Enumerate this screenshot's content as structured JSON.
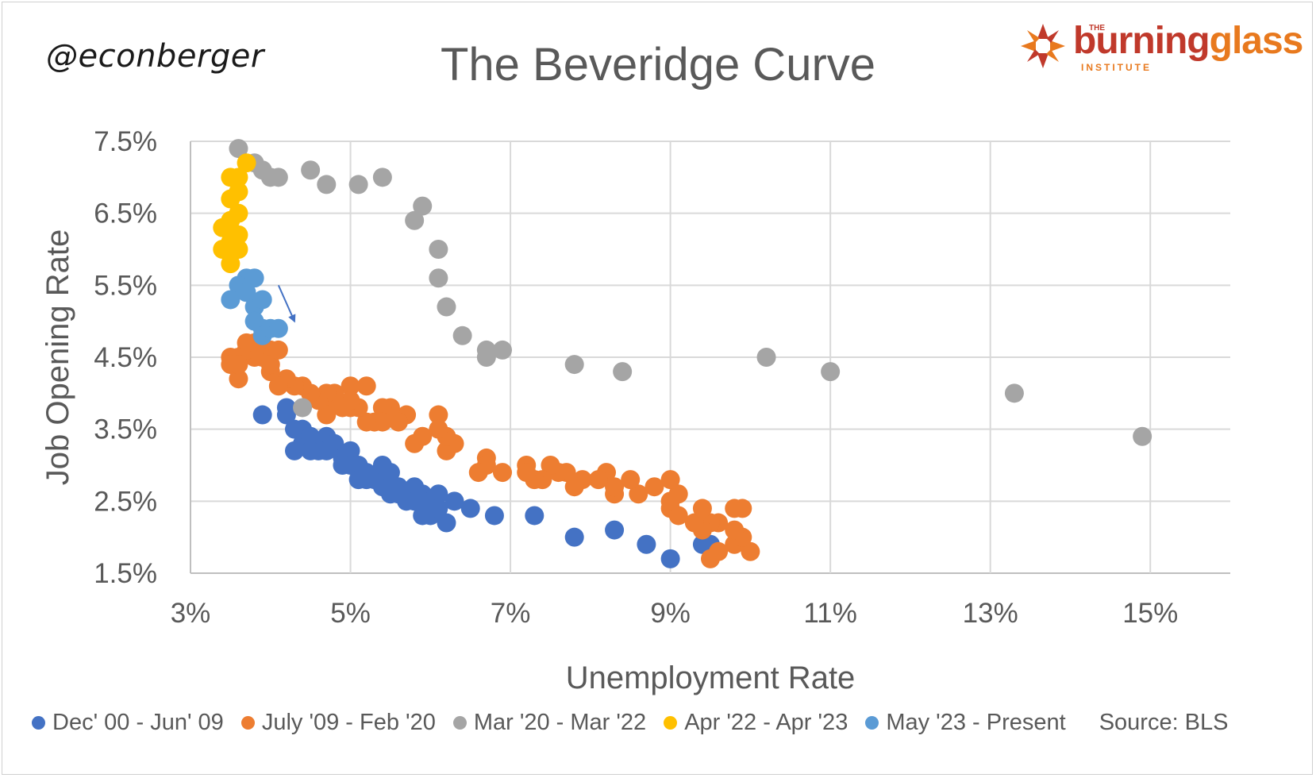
{
  "handle": "@econberger",
  "logo": {
    "the": "THE",
    "burning": "burning",
    "glass": "glass",
    "institute": "INSTITUTE",
    "primary_color": "#c0392b",
    "accent_color": "#e8791e"
  },
  "source": "Source: BLS",
  "chart_data": {
    "type": "scatter",
    "title": "The Beveridge Curve",
    "xlabel": "Unemployment Rate",
    "ylabel": "Job Opening Rate",
    "xlim": [
      3,
      16
    ],
    "ylim": [
      1.5,
      7.5
    ],
    "x_ticks": [
      "3%",
      "5%",
      "7%",
      "9%",
      "11%",
      "13%",
      "15%"
    ],
    "y_ticks": [
      "1.5%",
      "2.5%",
      "3.5%",
      "4.5%",
      "5.5%",
      "6.5%",
      "7.5%"
    ],
    "grid": true,
    "legend_position": "bottom",
    "annotations": [
      {
        "type": "arrow",
        "from": [
          4.1,
          5.5
        ],
        "to": [
          4.3,
          5.0
        ]
      }
    ],
    "series": [
      {
        "name": "Dec' 00 - Jun' 09",
        "color": "#4472c4",
        "points": [
          [
            3.9,
            3.7
          ],
          [
            4.2,
            3.8
          ],
          [
            4.2,
            3.7
          ],
          [
            4.3,
            3.5
          ],
          [
            4.4,
            3.5
          ],
          [
            4.3,
            3.2
          ],
          [
            4.4,
            3.3
          ],
          [
            4.5,
            3.4
          ],
          [
            4.6,
            3.3
          ],
          [
            4.7,
            3.4
          ],
          [
            4.7,
            3.2
          ],
          [
            4.8,
            3.3
          ],
          [
            4.6,
            3.2
          ],
          [
            4.5,
            3.2
          ],
          [
            4.9,
            3.1
          ],
          [
            5.0,
            3.2
          ],
          [
            5.0,
            3.0
          ],
          [
            5.1,
            3.0
          ],
          [
            5.1,
            2.8
          ],
          [
            5.2,
            2.9
          ],
          [
            5.3,
            2.8
          ],
          [
            5.4,
            3.0
          ],
          [
            5.4,
            2.7
          ],
          [
            5.5,
            2.9
          ],
          [
            5.5,
            2.6
          ],
          [
            5.6,
            2.7
          ],
          [
            5.7,
            2.6
          ],
          [
            5.7,
            2.5
          ],
          [
            5.8,
            2.7
          ],
          [
            5.8,
            2.5
          ],
          [
            5.9,
            2.3
          ],
          [
            5.9,
            2.6
          ],
          [
            6.0,
            2.5
          ],
          [
            6.0,
            2.3
          ],
          [
            6.1,
            2.6
          ],
          [
            6.1,
            2.4
          ],
          [
            6.2,
            2.2
          ],
          [
            6.3,
            2.5
          ],
          [
            6.5,
            2.4
          ],
          [
            6.8,
            2.3
          ],
          [
            7.3,
            2.3
          ],
          [
            7.8,
            2.0
          ],
          [
            8.3,
            2.1
          ],
          [
            8.7,
            1.9
          ],
          [
            9.0,
            1.7
          ],
          [
            9.4,
            1.9
          ],
          [
            9.5,
            1.9
          ],
          [
            4.9,
            3.0
          ],
          [
            5.2,
            2.8
          ],
          [
            5.6,
            2.6
          ]
        ]
      },
      {
        "name": "July '09 - Feb '20",
        "color": "#ed7d31",
        "points": [
          [
            9.5,
            1.7
          ],
          [
            9.6,
            1.8
          ],
          [
            10.0,
            1.8
          ],
          [
            9.8,
            1.9
          ],
          [
            9.9,
            2.0
          ],
          [
            9.8,
            2.1
          ],
          [
            9.6,
            2.2
          ],
          [
            9.5,
            2.2
          ],
          [
            9.4,
            2.1
          ],
          [
            9.3,
            2.2
          ],
          [
            9.4,
            2.4
          ],
          [
            9.8,
            2.4
          ],
          [
            9.9,
            2.4
          ],
          [
            9.0,
            2.4
          ],
          [
            9.1,
            2.3
          ],
          [
            9.0,
            2.5
          ],
          [
            9.1,
            2.6
          ],
          [
            9.0,
            2.8
          ],
          [
            8.8,
            2.7
          ],
          [
            8.6,
            2.6
          ],
          [
            8.5,
            2.8
          ],
          [
            8.3,
            2.6
          ],
          [
            8.2,
            2.9
          ],
          [
            8.3,
            2.7
          ],
          [
            8.1,
            2.8
          ],
          [
            7.9,
            2.8
          ],
          [
            7.8,
            2.7
          ],
          [
            7.7,
            2.9
          ],
          [
            7.6,
            2.9
          ],
          [
            7.5,
            3.0
          ],
          [
            7.4,
            2.8
          ],
          [
            7.3,
            2.8
          ],
          [
            7.2,
            3.0
          ],
          [
            7.2,
            2.9
          ],
          [
            6.9,
            2.9
          ],
          [
            6.7,
            3.1
          ],
          [
            6.7,
            3.0
          ],
          [
            6.6,
            2.9
          ],
          [
            6.3,
            3.3
          ],
          [
            6.2,
            3.2
          ],
          [
            6.2,
            3.4
          ],
          [
            6.1,
            3.7
          ],
          [
            6.1,
            3.5
          ],
          [
            5.9,
            3.4
          ],
          [
            5.8,
            3.3
          ],
          [
            5.7,
            3.7
          ],
          [
            5.6,
            3.6
          ],
          [
            5.5,
            3.8
          ],
          [
            5.4,
            3.8
          ],
          [
            5.4,
            3.6
          ],
          [
            5.3,
            3.6
          ],
          [
            5.2,
            3.6
          ],
          [
            5.2,
            4.1
          ],
          [
            5.1,
            3.8
          ],
          [
            5.0,
            3.8
          ],
          [
            5.0,
            4.1
          ],
          [
            5.0,
            3.9
          ],
          [
            4.9,
            3.8
          ],
          [
            4.8,
            3.9
          ],
          [
            4.8,
            4.0
          ],
          [
            4.7,
            4.0
          ],
          [
            4.7,
            3.7
          ],
          [
            4.6,
            3.9
          ],
          [
            4.5,
            4.0
          ],
          [
            4.4,
            4.1
          ],
          [
            4.3,
            4.1
          ],
          [
            4.2,
            4.2
          ],
          [
            4.1,
            4.1
          ],
          [
            4.0,
            4.3
          ],
          [
            4.0,
            4.6
          ],
          [
            3.9,
            4.5
          ],
          [
            3.8,
            4.7
          ],
          [
            3.8,
            4.5
          ],
          [
            3.7,
            4.6
          ],
          [
            3.7,
            4.7
          ],
          [
            3.6,
            4.5
          ],
          [
            3.6,
            4.2
          ],
          [
            3.5,
            4.5
          ],
          [
            3.5,
            4.4
          ],
          [
            3.6,
            4.4
          ],
          [
            4.0,
            4.4
          ],
          [
            4.1,
            4.6
          ]
        ]
      },
      {
        "name": "Mar '20 - Mar '22",
        "color": "#a5a5a5",
        "points": [
          [
            4.4,
            3.8
          ],
          [
            14.9,
            3.4
          ],
          [
            13.3,
            4.0
          ],
          [
            11.0,
            4.3
          ],
          [
            10.2,
            4.5
          ],
          [
            8.4,
            4.3
          ],
          [
            7.8,
            4.4
          ],
          [
            6.9,
            4.6
          ],
          [
            6.7,
            4.6
          ],
          [
            6.7,
            4.5
          ],
          [
            6.4,
            4.8
          ],
          [
            6.2,
            5.2
          ],
          [
            6.1,
            5.6
          ],
          [
            6.1,
            6.0
          ],
          [
            5.9,
            6.6
          ],
          [
            5.8,
            6.4
          ],
          [
            5.4,
            7.0
          ],
          [
            5.1,
            6.9
          ],
          [
            4.7,
            6.9
          ],
          [
            4.5,
            7.1
          ],
          [
            4.1,
            7.0
          ],
          [
            4.0,
            7.0
          ],
          [
            3.9,
            7.1
          ],
          [
            3.8,
            7.2
          ],
          [
            3.6,
            7.4
          ]
        ]
      },
      {
        "name": "Apr '22 - Apr '23",
        "color": "#ffc000",
        "points": [
          [
            3.6,
            7.0
          ],
          [
            3.7,
            7.2
          ],
          [
            3.5,
            7.0
          ],
          [
            3.6,
            6.8
          ],
          [
            3.5,
            6.7
          ],
          [
            3.6,
            6.5
          ],
          [
            3.5,
            6.4
          ],
          [
            3.6,
            6.2
          ],
          [
            3.4,
            6.3
          ],
          [
            3.5,
            6.1
          ],
          [
            3.6,
            6.0
          ],
          [
            3.4,
            6.0
          ],
          [
            3.5,
            5.8
          ]
        ]
      },
      {
        "name": "May '23 - Present",
        "color": "#5b9bd5",
        "points": [
          [
            3.7,
            5.6
          ],
          [
            3.8,
            5.6
          ],
          [
            3.6,
            5.5
          ],
          [
            3.7,
            5.4
          ],
          [
            3.5,
            5.3
          ],
          [
            3.8,
            5.2
          ],
          [
            3.9,
            5.3
          ],
          [
            3.8,
            5.0
          ],
          [
            3.9,
            4.9
          ],
          [
            3.9,
            4.8
          ],
          [
            4.0,
            4.9
          ],
          [
            4.1,
            4.9
          ]
        ]
      }
    ]
  }
}
